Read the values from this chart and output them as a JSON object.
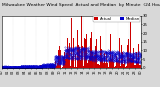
{
  "bg_color": "#d8d8d8",
  "plot_bg_color": "#ffffff",
  "bar_color": "#cc0000",
  "median_color": "#0000cc",
  "n_points": 1440,
  "ylim": [
    0,
    30
  ],
  "ytick_values": [
    0,
    5,
    10,
    15,
    20,
    25,
    30
  ],
  "title_fontsize": 3.2,
  "tick_fontsize": 2.8,
  "legend_fontsize": 2.8,
  "grid_color": "#aaaaaa",
  "grid_alpha": 0.6,
  "seed": 123
}
